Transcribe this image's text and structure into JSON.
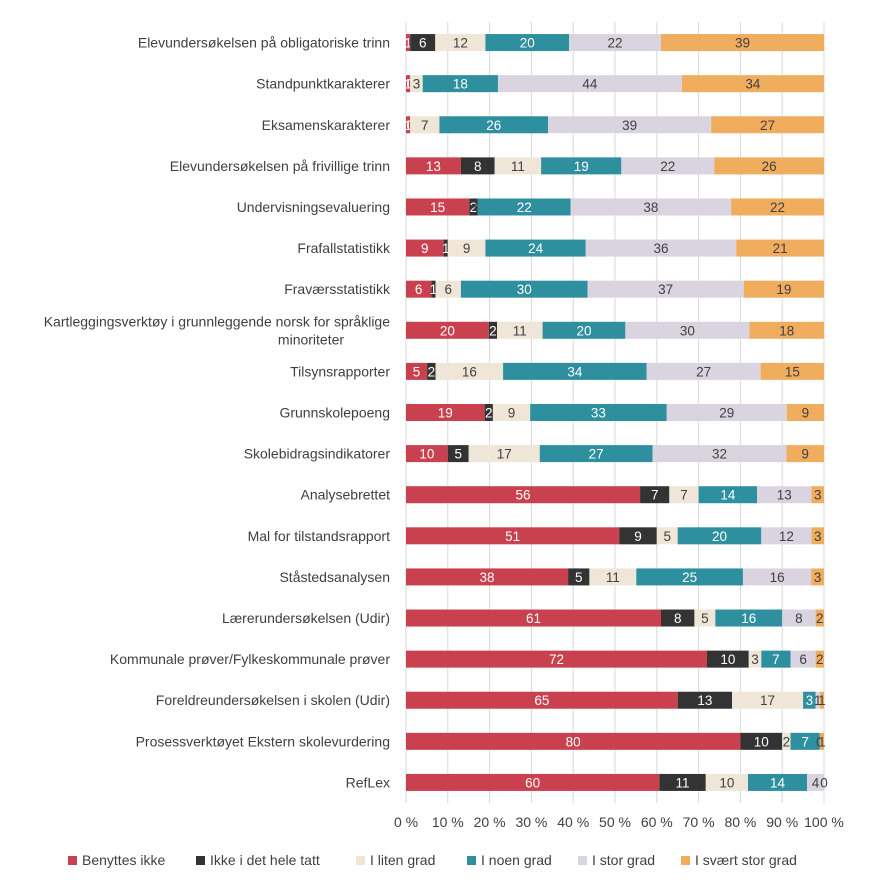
{
  "chart_data": {
    "type": "bar",
    "orientation": "horizontal",
    "stacked": "percent",
    "categories": [
      "Elevundersøkelsen på obligatoriske trinn",
      "Standpunktkarakterer",
      "Eksamenskarakterer",
      "Elevundersøkelsen på frivillige trinn",
      "Undervisningsevaluering",
      "Frafallstatistikk",
      "Fraværsstatistikk",
      "Kartleggingsverktøy i grunnleggende norsk for språklige minoriteter",
      "Tilsynsrapporter",
      "Grunnskolepoeng",
      "Skolebidragsindikatorer",
      "Analysebrettet",
      "Mal for tilstandsrapport",
      "Ståstedsanalysen",
      "Lærerundersøkelsen (Udir)",
      "Kommunale prøver/Fylkeskommunale prøver",
      "Foreldreundersøkelsen i skolen (Udir)",
      "Prosessverktøyet Ekstern skolevurdering",
      "RefLex"
    ],
    "category_lines": [
      [
        "Elevundersøkelsen på obligatoriske trinn"
      ],
      [
        "Standpunktkarakterer"
      ],
      [
        "Eksamenskarakterer"
      ],
      [
        "Elevundersøkelsen på frivillige trinn"
      ],
      [
        "Undervisningsevaluering"
      ],
      [
        "Frafallstatistikk"
      ],
      [
        "Fraværsstatistikk"
      ],
      [
        "Kartleggingsverktøy i grunnleggende norsk for språklige",
        "minoriteter"
      ],
      [
        "Tilsynsrapporter"
      ],
      [
        "Grunnskolepoeng"
      ],
      [
        "Skolebidragsindikatorer"
      ],
      [
        "Analysebrettet"
      ],
      [
        "Mal for tilstandsrapport"
      ],
      [
        "Ståstedsanalysen"
      ],
      [
        "Lærerundersøkelsen (Udir)"
      ],
      [
        "Kommunale prøver/Fylkeskommunale prøver"
      ],
      [
        "Foreldreundersøkelsen i skolen (Udir)"
      ],
      [
        "Prosessverktøyet Ekstern skolevurdering"
      ],
      [
        "RefLex"
      ]
    ],
    "series": [
      {
        "name": "Benyttes ikke",
        "color": "#c9414f",
        "label_color": "#ffffff",
        "values": [
          1,
          1,
          1,
          13,
          15,
          9,
          6,
          20,
          5,
          19,
          10,
          56,
          51,
          38,
          61,
          72,
          65,
          80,
          60
        ]
      },
      {
        "name": "Ikke i det hele tatt",
        "color": "#333333",
        "label_color": "#ffffff",
        "values": [
          6,
          0,
          0,
          8,
          2,
          1,
          1,
          2,
          2,
          2,
          5,
          7,
          9,
          5,
          8,
          10,
          13,
          10,
          11
        ]
      },
      {
        "name": "I liten grad",
        "color": "#efe6d8",
        "label_color": "#404040",
        "values": [
          12,
          3,
          7,
          11,
          0,
          9,
          6,
          11,
          16,
          9,
          17,
          7,
          5,
          11,
          5,
          3,
          17,
          2,
          10
        ]
      },
      {
        "name": "I noen grad",
        "color": "#2e8f9f",
        "label_color": "#ffffff",
        "values": [
          20,
          18,
          26,
          19,
          22,
          24,
          30,
          20,
          34,
          33,
          27,
          14,
          20,
          25,
          16,
          7,
          3,
          7,
          14
        ]
      },
      {
        "name": "I stor grad",
        "color": "#d9d4e0",
        "label_color": "#404040",
        "values": [
          22,
          44,
          39,
          22,
          38,
          36,
          37,
          30,
          27,
          29,
          32,
          13,
          12,
          16,
          8,
          6,
          1,
          0,
          4
        ]
      },
      {
        "name": "I svært stor grad",
        "color": "#f0ad5e",
        "label_color": "#404040",
        "values": [
          39,
          34,
          27,
          26,
          22,
          21,
          19,
          18,
          15,
          9,
          9,
          3,
          3,
          3,
          2,
          2,
          1,
          1,
          0
        ]
      }
    ],
    "xlim": [
      0,
      100
    ],
    "x_ticks": [
      "0 %",
      "10 %",
      "20 %",
      "30 %",
      "40 %",
      "50 %",
      "60 %",
      "70 %",
      "80 %",
      "90 %",
      "100 %"
    ],
    "gridlines": true,
    "legend_position": "bottom",
    "title": "",
    "xlabel": "",
    "ylabel": ""
  }
}
